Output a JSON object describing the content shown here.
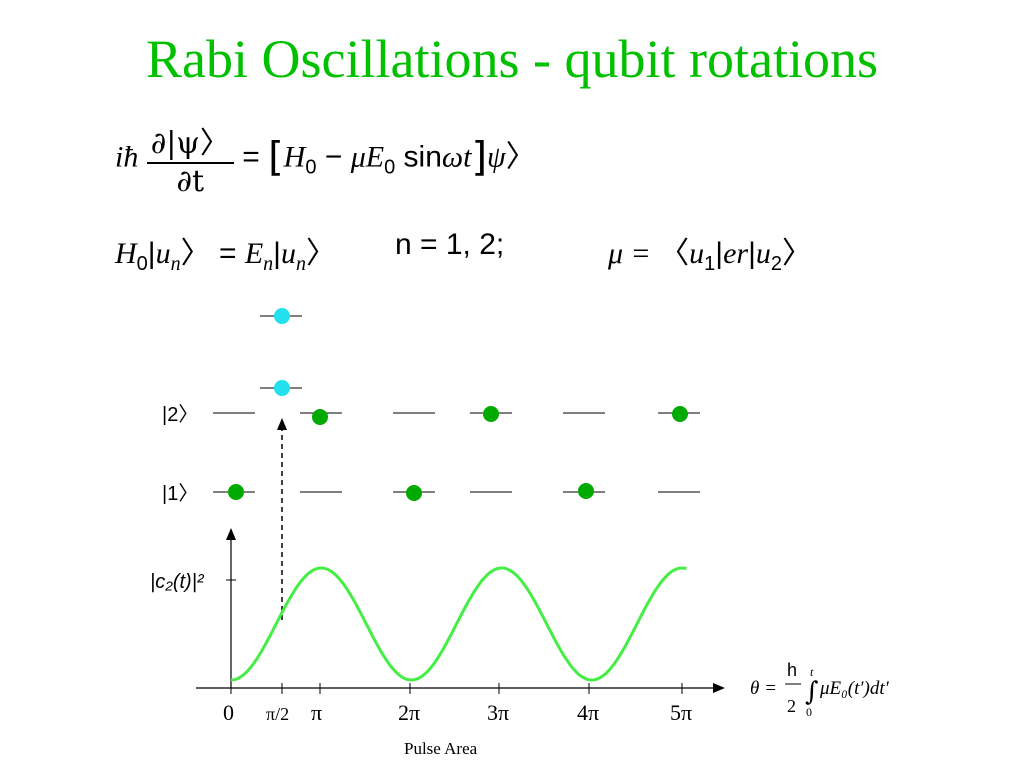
{
  "title": "Rabi Oscillations - qubit rotations",
  "eq1": {
    "ih": "iħ",
    "partial_psi": "∂|ψ〉",
    "partial_t": "∂t",
    "eq": "=",
    "H0": "H",
    "sub0": "0",
    "minus": "−",
    "mu": "μ",
    "E": "E",
    "sin": "sin",
    "omega": "ω",
    "t": "t",
    "psi": "ψ"
  },
  "eq2": {
    "H": "H",
    "sub0": "0",
    "un": "u",
    "subn": "n",
    "eq": "=",
    "E": "E",
    "n_eq": "n = 1, 2;",
    "mu_eq": "μ =",
    "u1": "u",
    "sub1": "1",
    "er": "er",
    "u2": "u",
    "sub2": "2"
  },
  "levels": {
    "ket2": "|2〉",
    "ket1": "|1〉"
  },
  "plot": {
    "ylabel": "|c₂(t)|²",
    "xlabel": "Pulse Area",
    "ticks": [
      "0",
      "π/2",
      "π",
      "2π",
      "3π",
      "4π",
      "5π"
    ],
    "theta_formula": {
      "theta": "θ =",
      "h": "h",
      "two": "2",
      "int_up": "t",
      "int_lo": "0",
      "integrand": "μE₀(t′)dt′"
    }
  },
  "colors": {
    "title": "#00c000",
    "curve": "#44ee44",
    "dot_green": "#00aa00",
    "dot_cyan": "#22e0ee"
  }
}
